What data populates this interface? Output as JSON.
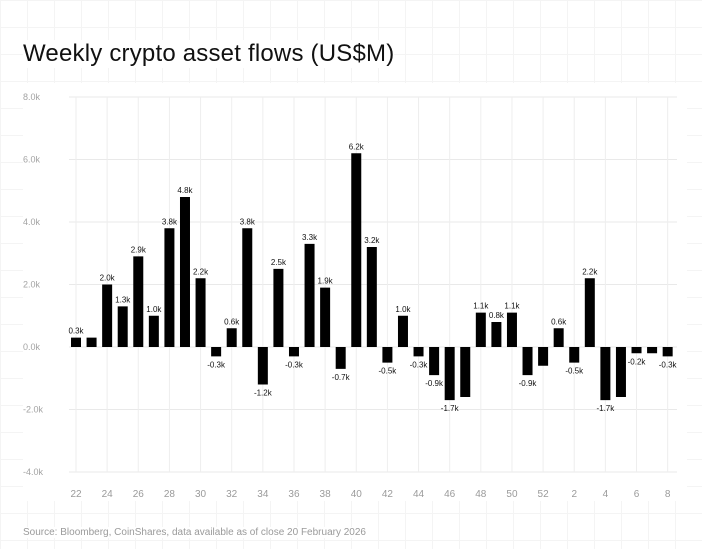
{
  "chart_data": {
    "type": "bar",
    "title": "Weekly crypto asset flows (US$M)",
    "xlabel": "",
    "ylabel": "",
    "ylim": [
      -4.0,
      8.0
    ],
    "yticks": [
      -4.0,
      -2.0,
      0.0,
      2.0,
      4.0,
      6.0,
      8.0
    ],
    "ytick_labels": [
      "-4.0k",
      "-2.0k",
      "0.0k",
      "2.0k",
      "4.0k",
      "6.0k",
      "8.0k"
    ],
    "grid": true,
    "bar_color": "#000000",
    "categories": [
      "22",
      "23",
      "24",
      "25",
      "26",
      "27",
      "28",
      "29",
      "30",
      "31",
      "32",
      "33",
      "34",
      "35",
      "36",
      "37",
      "38",
      "39",
      "40",
      "41",
      "42",
      "43",
      "44",
      "45",
      "46",
      "47",
      "48",
      "49",
      "50",
      "51",
      "52",
      "1",
      "2",
      "3",
      "4",
      "5",
      "6",
      "7",
      "8"
    ],
    "xtick_labels": [
      "22",
      "24",
      "26",
      "28",
      "30",
      "32",
      "34",
      "36",
      "38",
      "40",
      "42",
      "44",
      "46",
      "48",
      "50",
      "52",
      "2",
      "4",
      "6",
      "8"
    ],
    "values": [
      0.3,
      0.3,
      2.0,
      1.3,
      2.9,
      1.0,
      3.8,
      4.8,
      2.2,
      -0.3,
      0.6,
      3.8,
      -1.2,
      2.5,
      -0.3,
      3.3,
      1.9,
      -0.7,
      6.2,
      3.2,
      -0.5,
      1.0,
      -0.3,
      -0.9,
      -1.7,
      -1.6,
      1.1,
      0.8,
      1.1,
      -0.9,
      -0.6,
      0.6,
      -0.5,
      2.2,
      -1.7,
      -1.6,
      -0.2,
      -0.2,
      -0.3
    ],
    "data_labels": [
      "0.3k",
      "",
      "2.0k",
      "1.3k",
      "2.9k",
      "1.0k",
      "3.8k",
      "4.8k",
      "2.2k",
      "-0.3k",
      "0.6k",
      "3.8k",
      "-1.2k",
      "2.5k",
      "-0.3k",
      "3.3k",
      "1.9k",
      "-0.7k",
      "6.2k",
      "3.2k",
      "-0.5k",
      "1.0k",
      "-0.3k",
      "-0.9k",
      "-1.7k",
      "",
      "1.1k",
      "0.8k",
      "1.1k",
      "-0.9k",
      "",
      "0.6k",
      "-0.5k",
      "2.2k",
      "-1.7k",
      "",
      "-0.2k",
      "",
      "-0.3k"
    ]
  },
  "source": "Source: Bloomberg, CoinShares, data available as of close 20 February 2026"
}
